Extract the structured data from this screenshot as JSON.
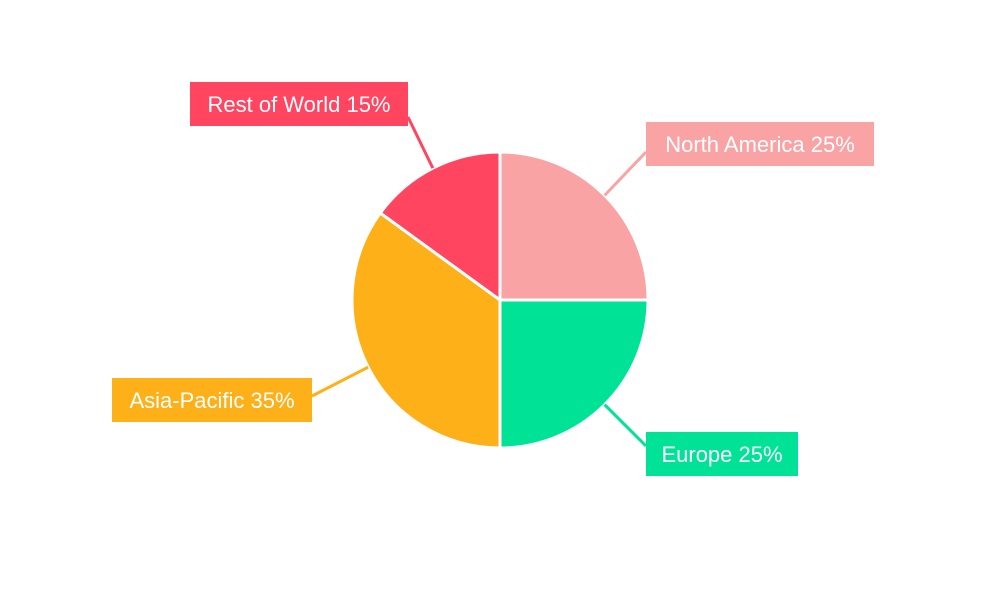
{
  "chart_data": {
    "type": "pie",
    "title": "",
    "start_angle": "12 o'clock, clockwise",
    "slices": [
      {
        "label": "North America",
        "value": 25,
        "label_text": "North America 25%",
        "color": "#F9A3A4"
      },
      {
        "label": "Europe",
        "value": 25,
        "label_text": "Europe 25%",
        "color": "#00E396"
      },
      {
        "label": "Asia-Pacific",
        "value": 35,
        "label_text": "Asia-Pacific 35%",
        "color": "#FEB019"
      },
      {
        "label": "Rest of World",
        "value": 15,
        "label_text": "Rest of World 15%",
        "color": "#FF4560"
      }
    ]
  }
}
